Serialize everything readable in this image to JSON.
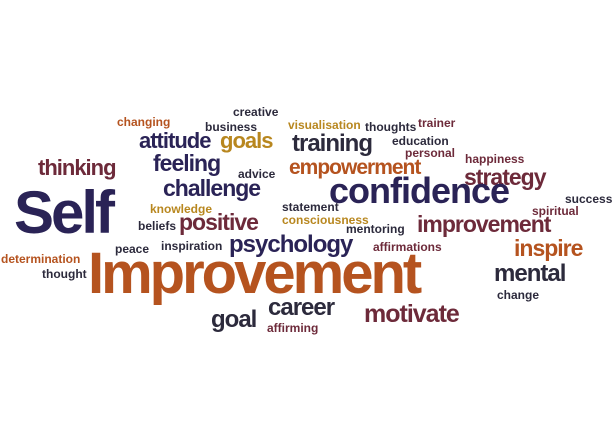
{
  "colors": {
    "navy": "#2a2356",
    "brown": "#b5531f",
    "maroon": "#6d2a3a",
    "gold": "#b8871f",
    "dark": "#2c2a3c"
  },
  "words": {
    "creative": "creative",
    "changing": "changing",
    "business": "business",
    "visualisation": "visualisation",
    "thoughts": "thoughts",
    "trainer": "trainer",
    "attitude": "attitude",
    "goals": "goals",
    "training": "training",
    "education": "education",
    "personal": "personal",
    "thinking": "thinking",
    "feeling": "feeling",
    "advice": "advice",
    "empowerment": "empowerment",
    "happiness": "happiness",
    "strategy": "strategy",
    "challenge": "challenge",
    "confidence": "confidence",
    "success": "success",
    "self": "Self",
    "knowledge": "knowledge",
    "statement": "statement",
    "spiritual": "spiritual",
    "positive": "positive",
    "consciousness": "consciousness",
    "beliefs": "beliefs",
    "mentoring": "mentoring",
    "improvement_small": "improvement",
    "peace": "peace",
    "inspiration": "inspiration",
    "psychology": "psychology",
    "affirmations": "affirmations",
    "inspire": "inspire",
    "determination": "determination",
    "thought": "thought",
    "improvement_big": "Improvement",
    "mental": "mental",
    "change": "change",
    "career": "career",
    "goal": "goal",
    "motivate": "motivate",
    "affirming": "affirming"
  }
}
